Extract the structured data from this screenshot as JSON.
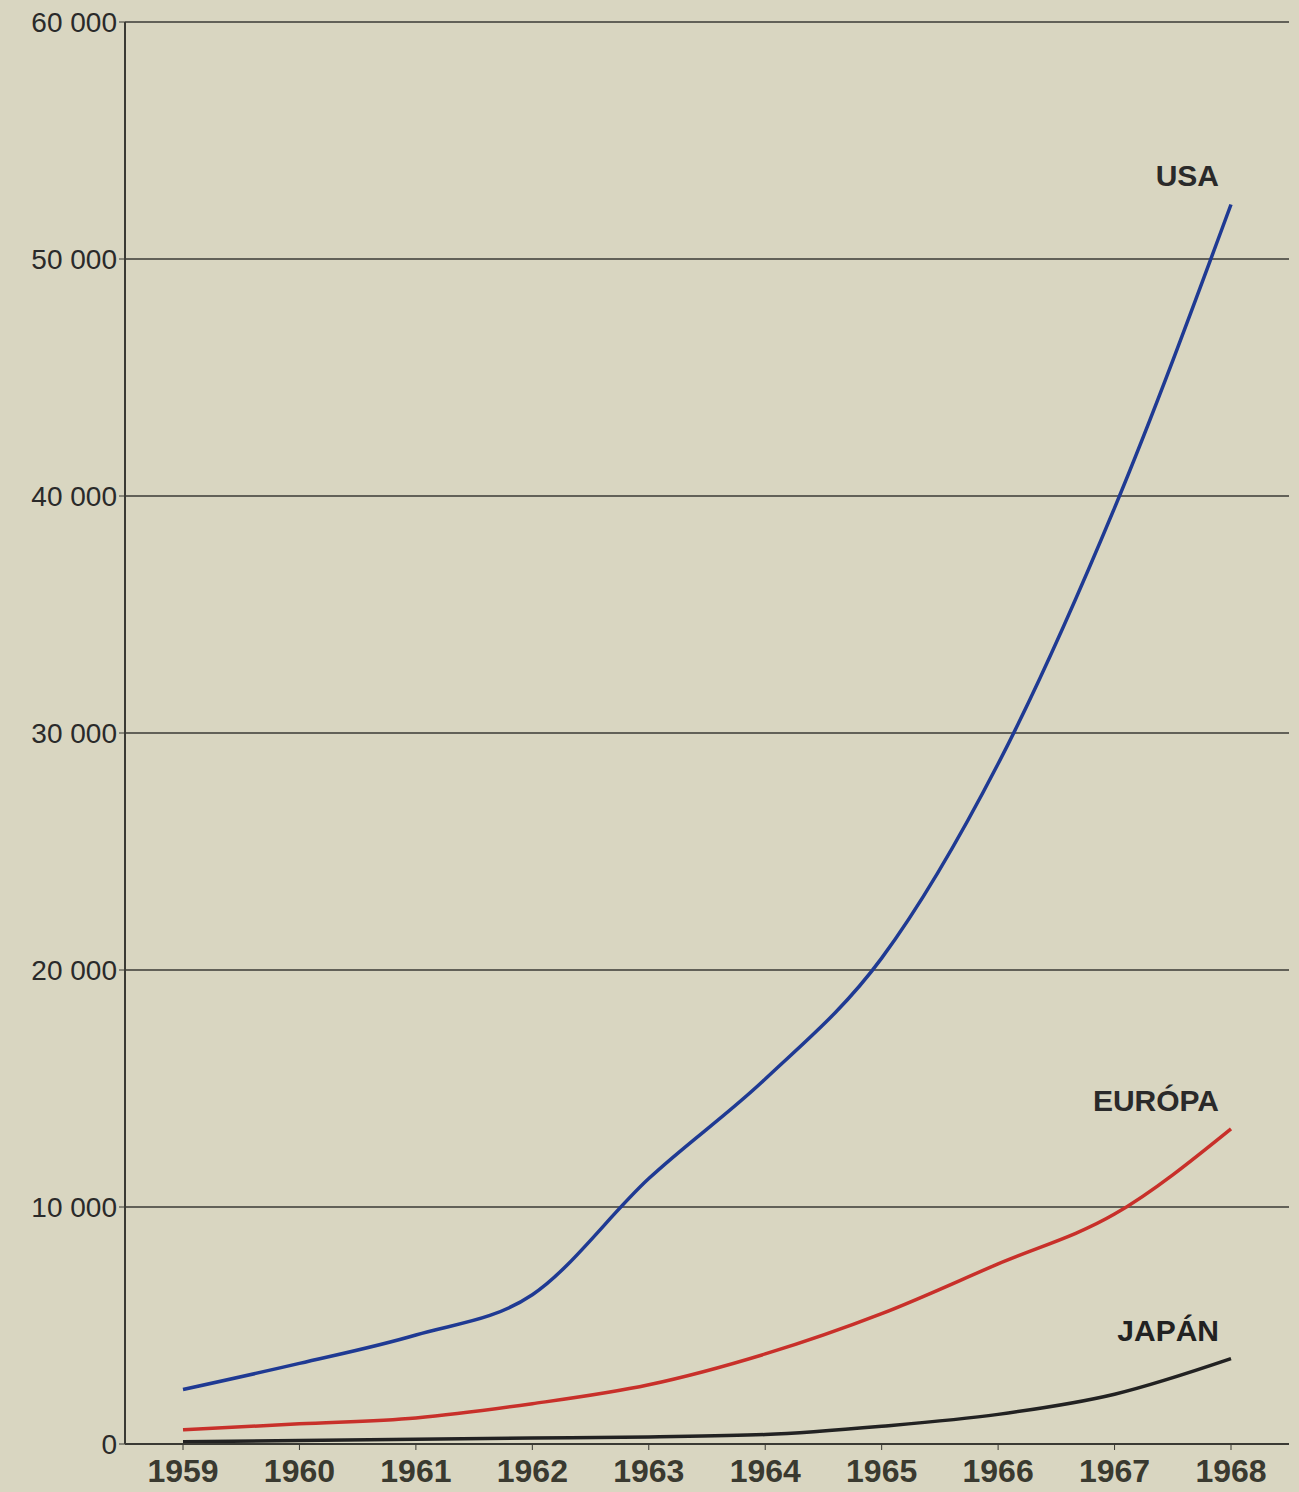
{
  "chart_data": {
    "type": "line",
    "categories": [
      "1959",
      "1960",
      "1961",
      "1962",
      "1963",
      "1964",
      "1965",
      "1966",
      "1967",
      "1968"
    ],
    "series": [
      {
        "name": "USA",
        "color": "#1f3a93",
        "values": [
          2300,
          3400,
          4600,
          6300,
          11200,
          15400,
          20500,
          28700,
          39500,
          52300
        ]
      },
      {
        "name": "EURÓPA",
        "color": "#c8302a",
        "values": [
          600,
          850,
          1100,
          1700,
          2500,
          3800,
          5500,
          7600,
          9700,
          13300
        ]
      },
      {
        "name": "JAPÁN",
        "color": "#222222",
        "values": [
          100,
          150,
          200,
          250,
          300,
          400,
          750,
          1250,
          2100,
          3600
        ]
      }
    ],
    "ylim": [
      0,
      60000
    ],
    "yticks": [
      0,
      {
        "value": 10000,
        "label": "10 000"
      },
      {
        "value": 20000,
        "label": "20 000"
      },
      {
        "value": 30000,
        "label": "30 000"
      },
      {
        "value": 40000,
        "label": "40 000"
      },
      {
        "value": 50000,
        "label": "50 000"
      },
      {
        "value": 60000,
        "label": "60 000"
      }
    ],
    "grid": true
  }
}
